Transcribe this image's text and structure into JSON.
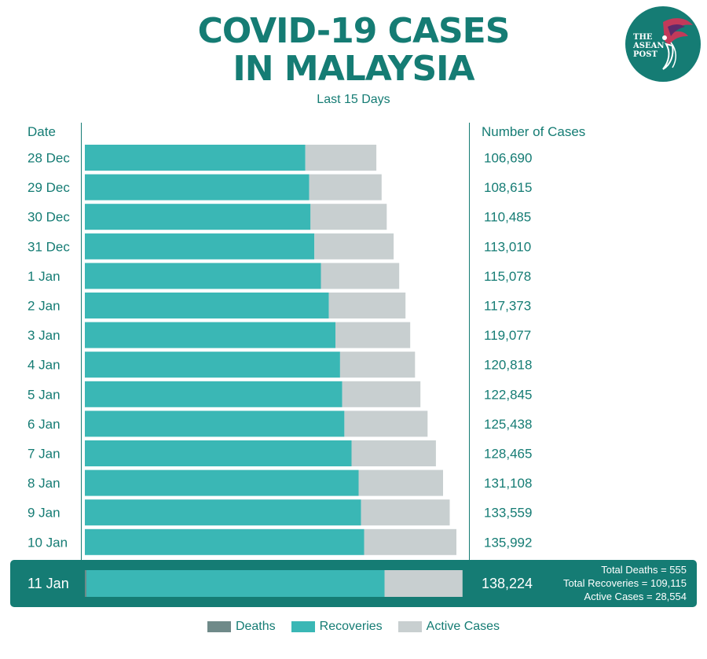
{
  "header": {
    "title_line1": "COVID-19 CASES",
    "title_line2": "IN MALAYSIA",
    "subtitle": "Last 15 Days",
    "logo_text": [
      "THE",
      "ASEAN",
      "POST"
    ]
  },
  "columns": {
    "date": "Date",
    "cases": "Number of Cases"
  },
  "colors": {
    "deaths": "#6f8a89",
    "recoveries": "#3ab7b5",
    "active": "#c8cfd0",
    "brand": "#157c74"
  },
  "chart_data": {
    "type": "bar",
    "orientation": "horizontal",
    "stacked": true,
    "categories": [
      "28 Dec",
      "29 Dec",
      "30 Dec",
      "31  Dec",
      "1 Jan",
      "2 Jan",
      "3 Jan",
      "4 Jan",
      "5 Jan",
      "6 Jan",
      "7 Jan",
      "8 Jan",
      "9 Jan",
      "10 Jan",
      "11 Jan"
    ],
    "totals": [
      "106,690",
      "108,615",
      "110,485",
      "113,010",
      "115,078",
      "117,373",
      "119,077",
      "120,818",
      "122,845",
      "125,438",
      "128,465",
      "131,108",
      "133,559",
      "135,992",
      "138,224"
    ],
    "series": [
      {
        "name": "Deaths",
        "values": [
          0,
          0,
          0,
          0,
          0,
          0,
          0,
          0,
          0,
          0,
          0,
          0,
          0,
          0,
          555
        ]
      },
      {
        "name": "Recoveries",
        "values": [
          80700,
          82100,
          82600,
          84000,
          86400,
          89300,
          91700,
          93400,
          94200,
          95000,
          97600,
          100200,
          101100,
          102200,
          109115
        ]
      },
      {
        "name": "Active Cases",
        "values": [
          25990,
          26515,
          27885,
          29010,
          28678,
          28073,
          27377,
          27418,
          28645,
          30438,
          30865,
          30908,
          32459,
          33792,
          28554
        ]
      }
    ],
    "highlight": {
      "date": "11 Jan",
      "total": "138,224",
      "stats": [
        "Total Deaths = 555",
        "Total Recoveries = 109,115",
        "Active Cases = 28,554"
      ]
    },
    "legend_position": "bottom",
    "xlim": [
      0,
      138224
    ]
  }
}
